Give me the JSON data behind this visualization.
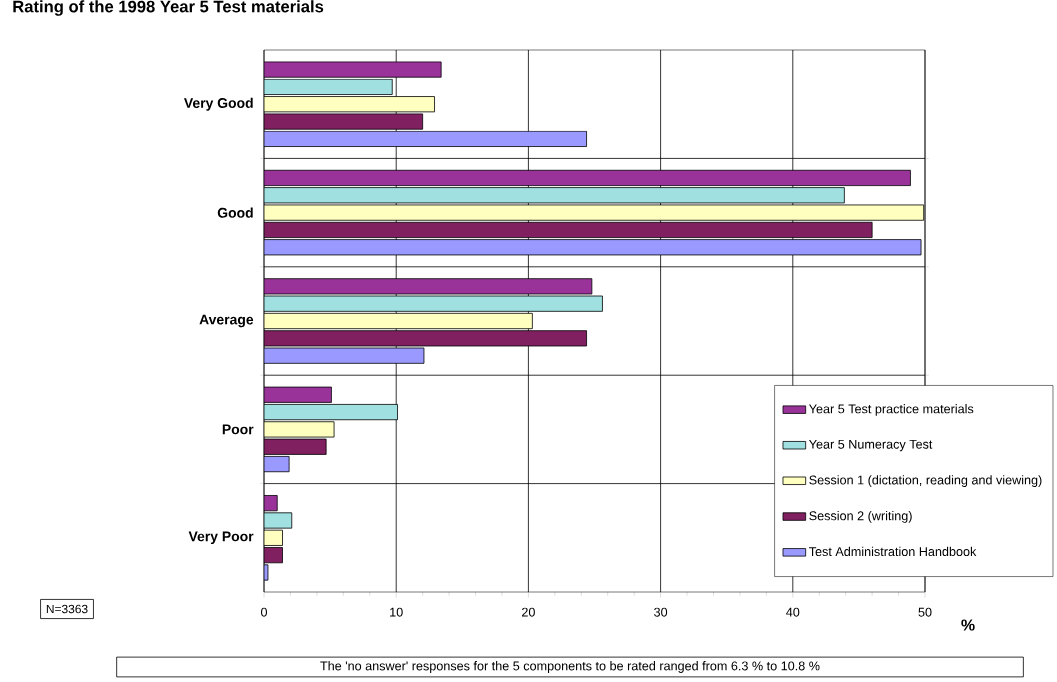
{
  "chart_data": {
    "type": "bar",
    "orientation": "horizontal",
    "title": "Rating of the 1998 Year 5 Test materials",
    "xlabel": "%",
    "categories": [
      "Very Good",
      "Good",
      "Average",
      "Poor",
      "Very Poor"
    ],
    "series": [
      {
        "name": "Year 5 Test practice materials",
        "color": "#993399",
        "values": [
          13.4,
          48.9,
          24.8,
          5.1,
          1.0
        ]
      },
      {
        "name": "Year 5 Numeracy Test",
        "color": "#a0e0e0",
        "values": [
          9.7,
          43.9,
          25.6,
          10.1,
          2.1
        ]
      },
      {
        "name": "Session 1 (dictation, reading and viewing)",
        "color": "#ffffc0",
        "values": [
          12.9,
          49.9,
          20.3,
          5.3,
          1.4
        ]
      },
      {
        "name": "Session 2 (writing)",
        "color": "#802060",
        "values": [
          12.0,
          46.0,
          24.4,
          4.7,
          1.4
        ]
      },
      {
        "name": "Test Administration Handbook",
        "color": "#9999ff",
        "values": [
          24.4,
          49.7,
          12.1,
          1.9,
          0.3
        ]
      }
    ],
    "xlim": [
      0,
      50
    ],
    "xticks": [
      0,
      10,
      20,
      30,
      40,
      50
    ],
    "grid": true,
    "legend": "bottom right",
    "annotations": [
      "N=3363",
      "The 'no answer' responses for the 5 components to be rated ranged from 6.3  % to 10.8 %"
    ]
  }
}
